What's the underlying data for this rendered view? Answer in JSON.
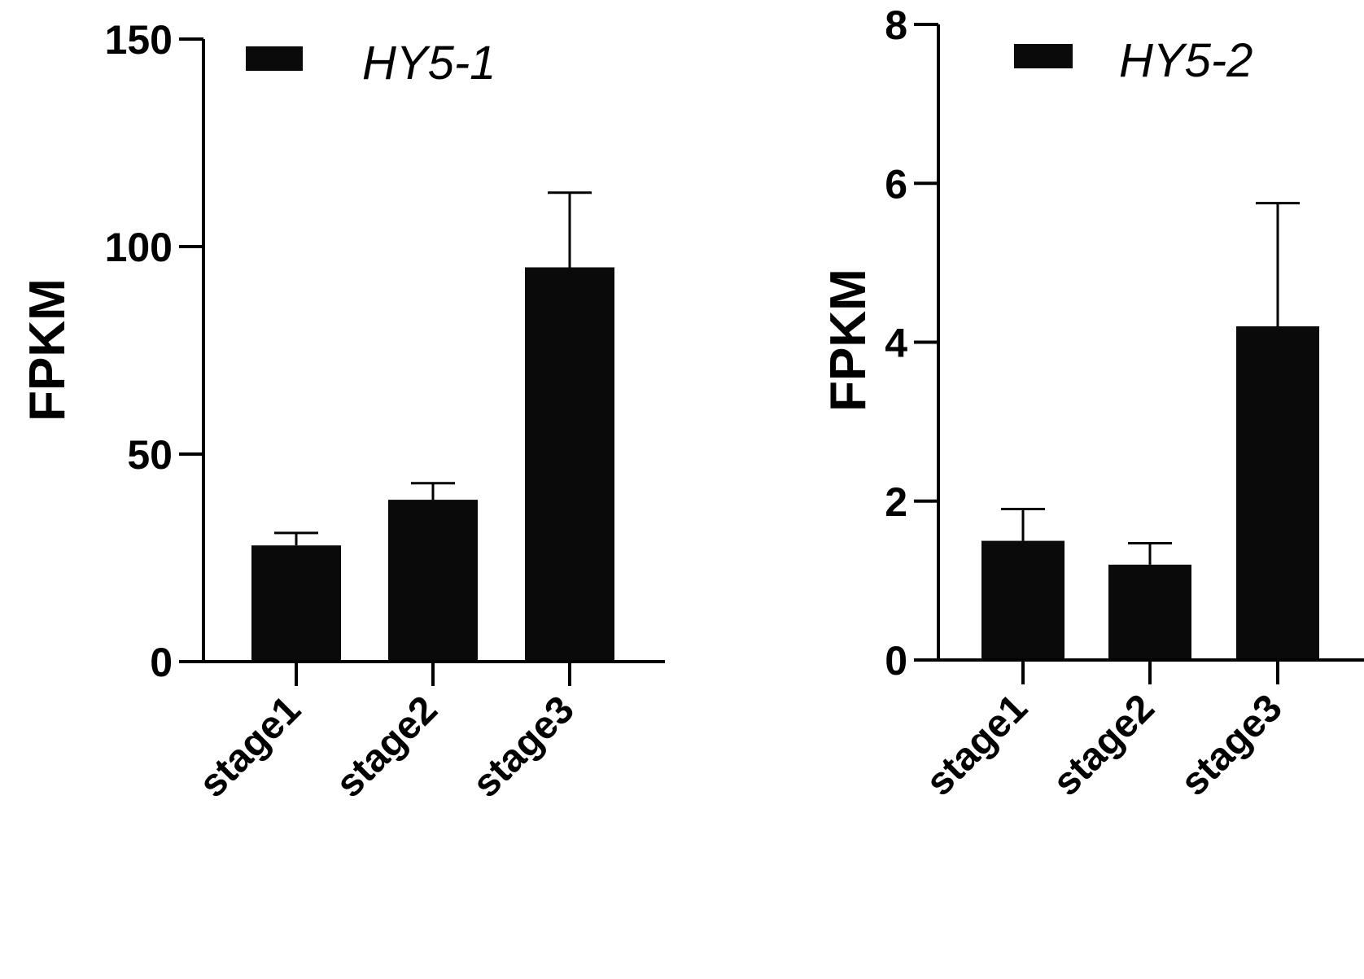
{
  "chart_data": [
    {
      "type": "bar",
      "categories": [
        "stage1",
        "stage2",
        "stage3"
      ],
      "series": [
        {
          "name": "HY5-1",
          "values": [
            28,
            39,
            95
          ],
          "error": [
            3,
            4,
            18
          ]
        }
      ],
      "ylabel": "FPKM",
      "ylim": [
        0,
        150
      ],
      "yticks": [
        0,
        50,
        100,
        150
      ],
      "color": "#0a0a0a",
      "grid": false,
      "legend": "top-left"
    },
    {
      "type": "bar",
      "categories": [
        "stage1",
        "stage2",
        "stage3"
      ],
      "series": [
        {
          "name": "HY5-2",
          "values": [
            1.5,
            1.2,
            4.2
          ],
          "error": [
            0.4,
            0.27,
            1.55
          ]
        }
      ],
      "ylabel": "FPKM",
      "ylim": [
        0,
        8
      ],
      "yticks": [
        0,
        2,
        4,
        6,
        8
      ],
      "color": "#0a0a0a",
      "grid": false,
      "legend": "top-left"
    }
  ]
}
